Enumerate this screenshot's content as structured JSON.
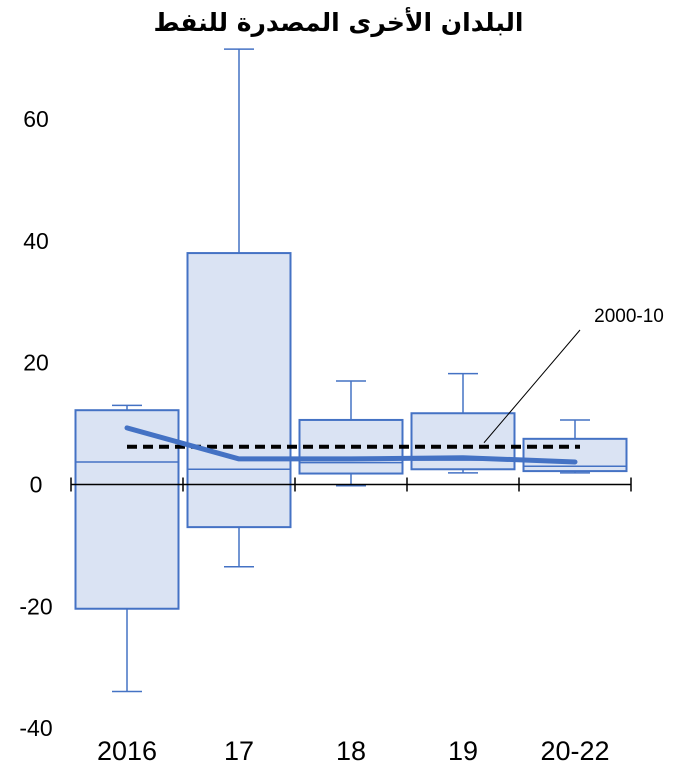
{
  "chart_data": {
    "type": "boxplot",
    "title": "البلدان الأخرى المصدرة للنفط",
    "xlabel": "",
    "ylabel": "",
    "ylim": [
      -40,
      72
    ],
    "yticks": [
      -40,
      -20,
      0,
      20,
      40,
      60
    ],
    "categories": [
      "2016",
      "17",
      "18",
      "19",
      "20-22"
    ],
    "boxes": [
      {
        "category": "2016",
        "whisker_low": -34,
        "q1": -20.4,
        "median": 3.7,
        "q3": 12.2,
        "whisker_high": 13.0
      },
      {
        "category": "17",
        "whisker_low": -13.5,
        "q1": -7.0,
        "median": 2.5,
        "q3": 38.0,
        "whisker_high": 71.5
      },
      {
        "category": "18",
        "whisker_low": -0.2,
        "q1": 1.8,
        "median": 3.6,
        "q3": 10.6,
        "whisker_high": 17.0
      },
      {
        "category": "19",
        "whisker_low": 1.9,
        "q1": 2.5,
        "median": 4.0,
        "q3": 11.7,
        "whisker_high": 18.2
      },
      {
        "category": "20-22",
        "whisker_low": 1.9,
        "q1": 2.2,
        "median": 3.0,
        "q3": 7.5,
        "whisker_high": 10.6
      }
    ],
    "series": [
      {
        "type": "line",
        "values": [
          9.3,
          4.2,
          4.2,
          4.4,
          3.7
        ],
        "color": "#4472C4"
      },
      {
        "name": "2000-10",
        "type": "reference",
        "value": 6.2,
        "style": "dashed",
        "color": "#000000"
      }
    ],
    "annotations": [
      {
        "text": "2000-10",
        "target": "2000-10"
      }
    ],
    "colors": {
      "box_fill": "#DAE3F3",
      "box_stroke": "#4472C4",
      "line": "#4472C4",
      "axis": "#000000"
    }
  }
}
